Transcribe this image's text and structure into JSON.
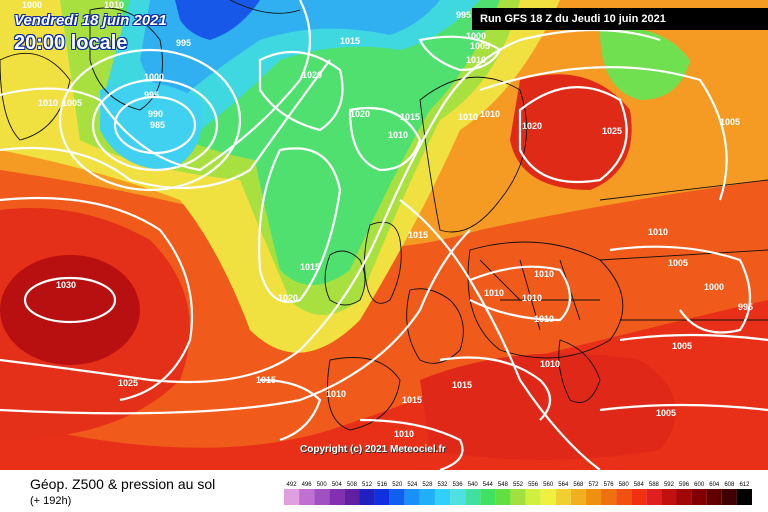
{
  "header": {
    "date": "Vendredi 18 juin 2021",
    "local_time": "20:00 locale",
    "run": "Run GFS 18 Z du Jeudi 10 juin 2021"
  },
  "copyright": "Copyright (c) 2021 Meteociel.fr",
  "footer": {
    "title": "Géop. Z500 & pression au sol",
    "lead": "(+ 192h)"
  },
  "legend": {
    "values": [
      "492",
      "496",
      "500",
      "504",
      "508",
      "512",
      "516",
      "520",
      "524",
      "528",
      "532",
      "536",
      "540",
      "544",
      "548",
      "552",
      "556",
      "560",
      "564",
      "568",
      "572",
      "576",
      "580",
      "584",
      "588",
      "592",
      "596",
      "600",
      "604",
      "608",
      "612"
    ],
    "colors": [
      "#e0a0e0",
      "#c070d0",
      "#a050c0",
      "#8030b0",
      "#6020a0",
      "#2020c0",
      "#1030e0",
      "#1060f0",
      "#1890f8",
      "#20b0f8",
      "#30d0f8",
      "#50e0e0",
      "#40e0a0",
      "#40e060",
      "#60e040",
      "#a0e040",
      "#d0f040",
      "#f0f040",
      "#f0d030",
      "#f0b020",
      "#f09010",
      "#f07010",
      "#f05010",
      "#f03010",
      "#e02020",
      "#c01010",
      "#a00808",
      "#800000",
      "#600000",
      "#400000",
      "#000000"
    ]
  },
  "isobars": [
    "1000",
    "1010",
    "995",
    "1010",
    "1005",
    "1000",
    "995",
    "990",
    "985",
    "1015",
    "1020",
    "1020",
    "1010",
    "1015",
    "1010",
    "1010",
    "1020",
    "1025",
    "1005",
    "1015",
    "1015",
    "1020",
    "1010",
    "1010",
    "1010",
    "1005",
    "1000",
    "995",
    "1005",
    "1030",
    "1025",
    "1015",
    "1010",
    "1015",
    "1015",
    "1010",
    "1010",
    "1010",
    "1005",
    "1010",
    "995",
    "1000",
    "1005",
    "1010"
  ]
}
